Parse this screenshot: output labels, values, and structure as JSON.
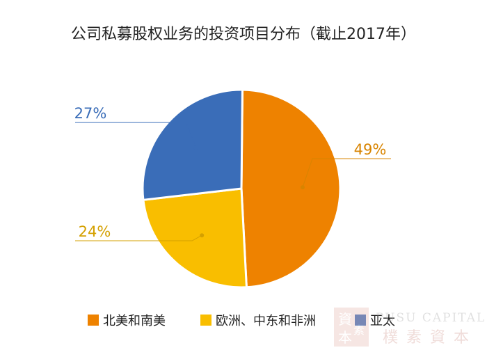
{
  "chart_data": {
    "type": "pie",
    "title": "公司私募股权业务的投资项目分布（截止2017年）",
    "slices": [
      {
        "label": "北美和南美",
        "value": 49,
        "display": "49%",
        "color": "#EE8200"
      },
      {
        "label": "欧洲、中东和非洲",
        "value": 24,
        "display": "24%",
        "color": "#F9BE00"
      },
      {
        "label": "亚太",
        "value": 27,
        "display": "27%",
        "color": "#3A6DB8"
      }
    ],
    "legend_position": "bottom",
    "label_colors": [
      "#D88400",
      "#D4A000",
      "#3A6DB8"
    ]
  },
  "watermark": {
    "text_en": "PUSU CAPITAL",
    "text_cn": "樸素資本",
    "seal_chars": [
      "資",
      "本",
      "素"
    ]
  }
}
